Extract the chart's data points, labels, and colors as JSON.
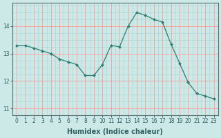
{
  "x": [
    0,
    1,
    2,
    3,
    4,
    5,
    6,
    7,
    8,
    9,
    10,
    11,
    12,
    13,
    14,
    15,
    16,
    17,
    18,
    19,
    20,
    21,
    22,
    23
  ],
  "y": [
    13.3,
    13.3,
    13.2,
    13.1,
    13.0,
    12.8,
    12.7,
    12.6,
    12.2,
    12.2,
    12.6,
    13.3,
    13.25,
    14.0,
    14.5,
    14.4,
    14.25,
    14.15,
    13.35,
    12.65,
    11.95,
    11.55,
    11.45,
    11.35
  ],
  "line_color": "#2e7d6e",
  "marker": "D",
  "marker_size": 2.0,
  "linewidth": 0.9,
  "xlabel": "Humidex (Indice chaleur)",
  "ylim": [
    10.75,
    14.85
  ],
  "xlim": [
    -0.5,
    23.5
  ],
  "yticks": [
    11,
    12,
    13,
    14
  ],
  "xticks": [
    0,
    1,
    2,
    3,
    4,
    5,
    6,
    7,
    8,
    9,
    10,
    11,
    12,
    13,
    14,
    15,
    16,
    17,
    18,
    19,
    20,
    21,
    22,
    23
  ],
  "bg_color": "#cce9e7",
  "grid_major_color": "#ff9999",
  "grid_minor_color": "#aad8d6",
  "spine_color": "#557070",
  "tick_color": "#2e5f5f",
  "tick_fontsize": 5.5,
  "xlabel_fontsize": 7.0,
  "xlabel_fontweight": "bold"
}
